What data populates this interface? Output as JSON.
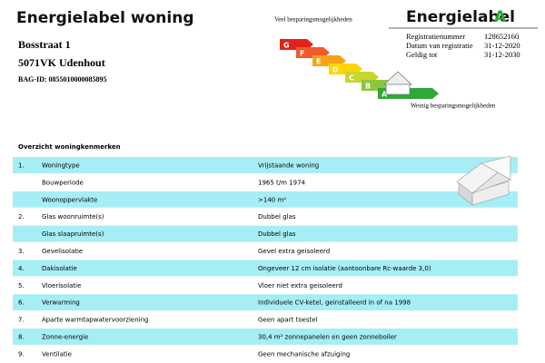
{
  "header": {
    "title": "Energielabel woning",
    "street": "Bosstraat 1",
    "city": "5071VK Udenhout",
    "bag_id": "BAG-ID: 0855010000085895"
  },
  "scale": {
    "top_note": "Veel besparingsmogelijkheden",
    "bottom_note": "Weinig besparingsmogelijkheden",
    "letters": [
      "G",
      "F",
      "E",
      "D",
      "C",
      "B",
      "A"
    ]
  },
  "label_box": {
    "title": "Energielabel",
    "grade": "A",
    "fields": [
      {
        "label": "Registratienummer",
        "value": "128652160"
      },
      {
        "label": "Datum van registratie",
        "value": "31-12-2020"
      },
      {
        "label": "Geldig tot",
        "value": "31-12-2030"
      }
    ]
  },
  "table": {
    "title": "Overzicht woningkenmerken",
    "rows": [
      {
        "number": "1.",
        "label": "Woningtype",
        "value": "Vrijstaande woning"
      },
      {
        "label": "Bouwperiode",
        "value": "1965 t/m 1974"
      },
      {
        "label": "Woonoppervlakte",
        "value": ">140 m²"
      },
      {
        "number": "2.",
        "label": "Glas woonruimte(s)",
        "value": "Dubbel glas"
      },
      {
        "label": "Glas slaapruimte(s)",
        "value": "Dubbel glas"
      },
      {
        "number": "3.",
        "label": "Gevelisolatie",
        "value": "Gevel extra geisoleerd"
      },
      {
        "number": "4.",
        "label": "Dakisolatie",
        "value": "Ongeveer 12 cm isolatie (aantoonbare Rc-waarde 3,0)"
      },
      {
        "number": "5.",
        "label": "Vloerisolatie",
        "value": "Vloer niet extra geisoleerd"
      },
      {
        "number": "6.",
        "label": "Verwarming",
        "value": "Individuele CV-ketel, geinstalleerd in of na 1998"
      },
      {
        "number": "7.",
        "label": "Aparte warmtapwatervoorziening",
        "value": "Geen apart toestel"
      },
      {
        "number": "8.",
        "label": "Zonne-energie",
        "value": "30,4 m² zonnepanelen en geen zonneboiler"
      },
      {
        "number": "9.",
        "label": "Ventilatie",
        "value": "Geen mechanische afzuiging"
      }
    ]
  }
}
